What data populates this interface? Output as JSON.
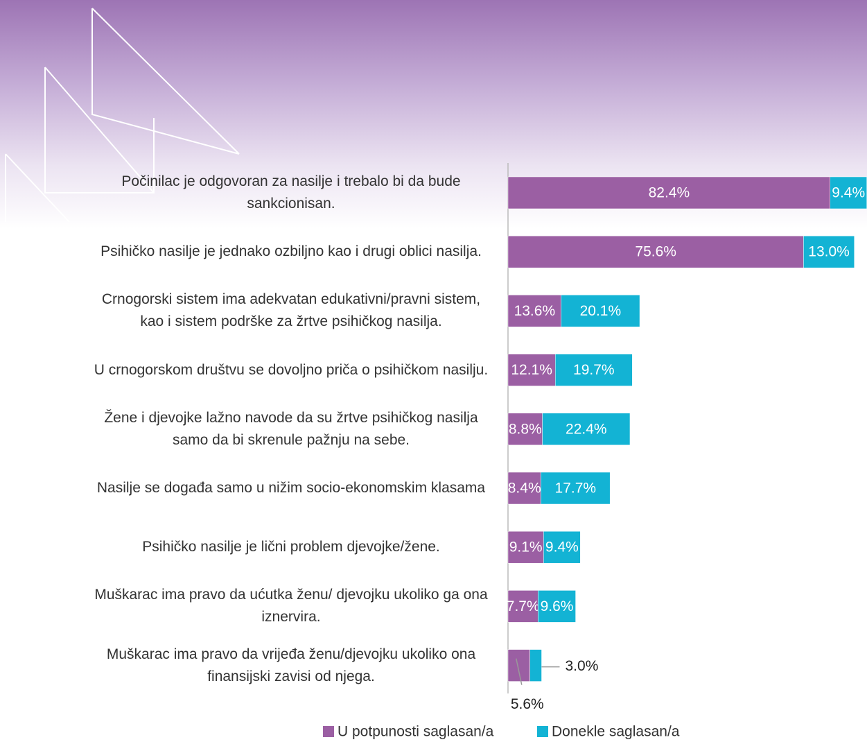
{
  "chart_data": {
    "type": "stacked-bar-horizontal",
    "categories": [
      "Počinilac je odgovoran za nasilje i trebalo bi da bude sankcionisan.",
      "Psihičko nasilje je jednako ozbiljno kao i drugi oblici nasilja.",
      "Crnogorski sistem ima adekvatan edukativni/pravni sistem, kao i sistem podrške za žrtve psihičkog nasilja.",
      "U crnogorskom društvu se dovoljno priča o psihičkom nasilju.",
      "Žene i djevojke lažno navode da su žrtve psihičkog nasilja samo da bi skrenule pažnju na sebe.",
      "Nasilje se događa samo u nižim socio-ekonomskim klasama",
      "Psihičko nasilje je lični problem djevojke/žene.",
      "Muškarac ima pravo da ućutka ženu/ djevojku ukoliko ga ona iznervira.",
      "Muškarac ima pravo da vrijeđa ženu/djevojku ukoliko ona finansijski zavisi od njega."
    ],
    "series": [
      {
        "name": "U potpunosti saglasan/a",
        "color": "#9b5fa3",
        "values": [
          82.4,
          75.6,
          13.6,
          12.1,
          8.8,
          8.4,
          9.1,
          7.7,
          5.6
        ],
        "value_labels": [
          "82.4%",
          "75.6%",
          "13.6%",
          "12.1%",
          "8.8%",
          "8.4%",
          "9.1%",
          "7.7%",
          "5.6%"
        ]
      },
      {
        "name": "Donekle saglasan/a",
        "color": "#13b3d4",
        "values": [
          9.4,
          13.0,
          20.1,
          19.7,
          22.4,
          17.7,
          9.4,
          9.6,
          3.0
        ],
        "value_labels": [
          "9.4%",
          "13.0%",
          "20.1%",
          "19.7%",
          "22.4%",
          "17.7%",
          "9.4%",
          "9.6%",
          "3.0%"
        ]
      }
    ],
    "legend": "bottom"
  }
}
